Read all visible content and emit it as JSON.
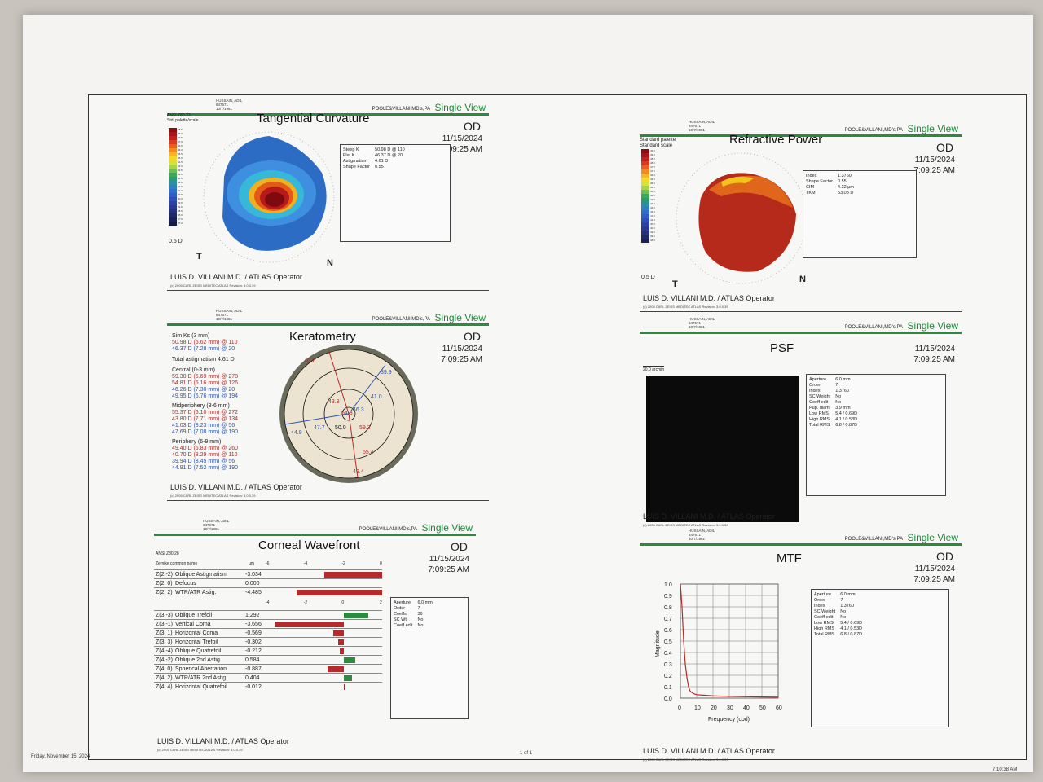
{
  "patient": {
    "name": "HUSSAIN, ADIL",
    "id": "647671",
    "dob": "10/7/1981"
  },
  "clinic": "POOLE&VILLANI,MD's,PA",
  "view": "Single View",
  "eye": "OD",
  "date": "11/15/2024",
  "time": "7:09:25 AM",
  "operator": "LUIS D. VILLANI M.D. / ATLAS Operator",
  "copyright": "(c) 2005 CARL ZEISS MEDITEC   ATLAS   Revision: 3.0.0.39",
  "colors": {
    "green": "#2b8a3f",
    "red": "#b52a2a",
    "blue": "#2b55b5"
  },
  "tangential": {
    "title": "Tangential Curvature",
    "palette_line1": "ANSI Z80.23",
    "palette_line2": "Std. palette/scale",
    "scale_bottom": "0.5 D",
    "scale_values": [
      "48.5",
      "48.0",
      "47.5",
      "47.0",
      "46.5",
      "46.0",
      "45.5",
      "45.0",
      "44.5",
      "44.0",
      "43.5",
      "43.0",
      "42.5",
      "42.0",
      "41.5",
      "41.0",
      "40.5",
      "40.0",
      "39.5",
      "39.0",
      "38.5",
      "38.0",
      "37.5",
      "37.0"
    ],
    "label_t": "T",
    "label_n": "N",
    "info": [
      [
        "Steep K",
        "50.98 D @ 110"
      ],
      [
        "Flat K",
        "46.37 D @ 20"
      ],
      [
        "Astigmatism",
        "4.61 D"
      ],
      [
        "Shape Factor",
        "0.55"
      ]
    ]
  },
  "refractive": {
    "title": "Refractive Power",
    "palette_line1": "Standard palette",
    "palette_line2": "Standard scale",
    "scale_bottom": "0.5 D",
    "scale_values": [
      "49.5",
      "49.0",
      "48.5",
      "48.0",
      "47.5",
      "47.0",
      "46.5",
      "46.0",
      "45.5",
      "45.0",
      "44.5",
      "44.0",
      "43.5",
      "43.0",
      "42.5",
      "42.0",
      "41.5",
      "41.0",
      "40.5",
      "40.0",
      "39.5",
      "39.0",
      "38.5"
    ],
    "label_t": "T",
    "label_n": "N",
    "info": [
      [
        "Index",
        "1.3760"
      ],
      [
        "Shape Factor",
        "0.55"
      ],
      [
        "CIM",
        "4.32 µm"
      ],
      [
        "TKM",
        "53.08 D"
      ]
    ]
  },
  "keratometry": {
    "title": "Keratometry",
    "simk_label": "Sim Ks (3 mm)",
    "simk": [
      "50.98 D (6.62 mm) @ 110",
      "46.37 D (7.28 mm) @ 20"
    ],
    "total_astig": "Total astigmatism 4.61 D",
    "central_label": "Central (0-3 mm)",
    "central": [
      "59.30 D (5.69 mm) @ 278",
      "54.81 D (6.16 mm) @ 126",
      "46.26 D (7.30 mm) @ 20",
      "49.95 D (6.76 mm) @ 194"
    ],
    "mid_label": "Midperiphery (3-6 mm)",
    "mid": [
      "55.37 D (6.10 mm) @ 272",
      "43.80 D (7.71 mm) @ 134",
      "41.03 D (8.23 mm) @ 56",
      "47.69 D (7.08 mm) @ 190"
    ],
    "peri_label": "Periphery (6-9 mm)",
    "peri": [
      "49.40 D (6.83 mm) @ 260",
      "40.70 D (8.29 mm) @ 110",
      "39.94 D (8.45 mm) @ 56",
      "44.91 D (7.52 mm) @ 190"
    ],
    "ring_values": [
      "40.7",
      "39.9",
      "41.0",
      "46.3",
      "43.8",
      "54.8",
      "44.9",
      "47.7",
      "50.0",
      "59.3",
      "55.4",
      "49.4"
    ]
  },
  "psf": {
    "title": "PSF",
    "scale_label": "20.0 arcmin",
    "info": [
      [
        "Aperture",
        "6.0 mm"
      ],
      [
        "Order",
        "7"
      ],
      [
        "Index",
        "1.3760"
      ],
      [
        "SC Weight",
        "No"
      ],
      [
        "Coeff edit",
        "No"
      ],
      [
        "Pup. diam",
        "3.9 mm"
      ],
      [
        "Low RMS",
        "5.4 / 0.69D"
      ],
      [
        "High RMS",
        "4.1 / 0.53D"
      ],
      [
        "Total RMS",
        "6.8 / 0.87D"
      ]
    ]
  },
  "wavefront": {
    "title": "Corneal Wavefront",
    "ansi": "ANSI Z80.28",
    "col_name": "Zernike common name",
    "col_unit": "µm",
    "axis1": [
      "-6",
      "-4",
      "-2",
      "0"
    ],
    "axis2": [
      "-4",
      "-2",
      "0",
      "2"
    ],
    "rows1": [
      [
        "Z(2,-2)",
        "Oblique Astigmatism",
        "-3.034"
      ],
      [
        "Z(2, 0)",
        "Defocus",
        "0.000"
      ],
      [
        "Z(2, 2)",
        "WTR/ATR Astig.",
        "-4.485"
      ]
    ],
    "rows2": [
      [
        "Z(3,-3)",
        "Oblique Trefoil",
        "1.292"
      ],
      [
        "Z(3,-1)",
        "Vertical Coma",
        "-3.656"
      ],
      [
        "Z(3, 1)",
        "Horizontal Coma",
        "-0.569"
      ],
      [
        "Z(3, 3)",
        "Horizontal Trefoil",
        "-0.302"
      ],
      [
        "Z(4,-4)",
        "Oblique Quatrefoil",
        "-0.212"
      ],
      [
        "Z(4,-2)",
        "Oblique 2nd Astig.",
        "0.584"
      ],
      [
        "Z(4, 0)",
        "Spherical Aberration",
        "-0.887"
      ],
      [
        "Z(4, 2)",
        "WTR/ATR 2nd Astig.",
        "0.404"
      ],
      [
        "Z(4, 4)",
        "Horizontal Quatrefoil",
        "-0.012"
      ]
    ],
    "info": [
      [
        "Aperture",
        "6.0 mm"
      ],
      [
        "Order",
        "7"
      ],
      [
        "Coeffs",
        "36"
      ],
      [
        "SC Wt.",
        "No"
      ],
      [
        "Coeff edit",
        "No"
      ]
    ]
  },
  "mtf": {
    "title": "MTF",
    "ylabel": "Magnitude",
    "xlabel": "Frequency (cpd)",
    "info": [
      [
        "Aperture",
        "6.0 mm"
      ],
      [
        "Order",
        "7"
      ],
      [
        "Index",
        "1.3760"
      ],
      [
        "SC Weight",
        "No"
      ],
      [
        "Coeff edit",
        "No"
      ],
      [
        "Low RMS",
        "5.4 / 0.69D"
      ],
      [
        "High RMS",
        "4.1 / 0.53D"
      ],
      [
        "Total RMS",
        "6.8 / 0.87D"
      ]
    ]
  },
  "chart_data": {
    "type": "line",
    "title": "MTF",
    "xlabel": "Frequency (cpd)",
    "ylabel": "Magnitude",
    "xlim": [
      0,
      60
    ],
    "ylim": [
      0,
      1
    ],
    "x_ticks": [
      "0",
      "10",
      "20",
      "30",
      "40",
      "50",
      "60"
    ],
    "y_ticks": [
      "1.0",
      "0.9",
      "0.8",
      "0.7",
      "0.6",
      "0.5",
      "0.4",
      "0.3",
      "0.2",
      "0.1",
      "0.0"
    ],
    "series": [
      {
        "name": "MTF",
        "x": [
          0,
          1,
          2,
          3,
          4,
          5,
          6,
          8,
          10,
          15,
          20,
          30,
          40,
          50,
          60
        ],
        "y": [
          1.0,
          0.8,
          0.5,
          0.3,
          0.18,
          0.1,
          0.06,
          0.04,
          0.03,
          0.025,
          0.02,
          0.015,
          0.012,
          0.01,
          0.008
        ]
      }
    ]
  },
  "footer": {
    "left": "Friday, November 15, 2024",
    "center": "1 of 1",
    "right": "7:10:38 AM"
  }
}
